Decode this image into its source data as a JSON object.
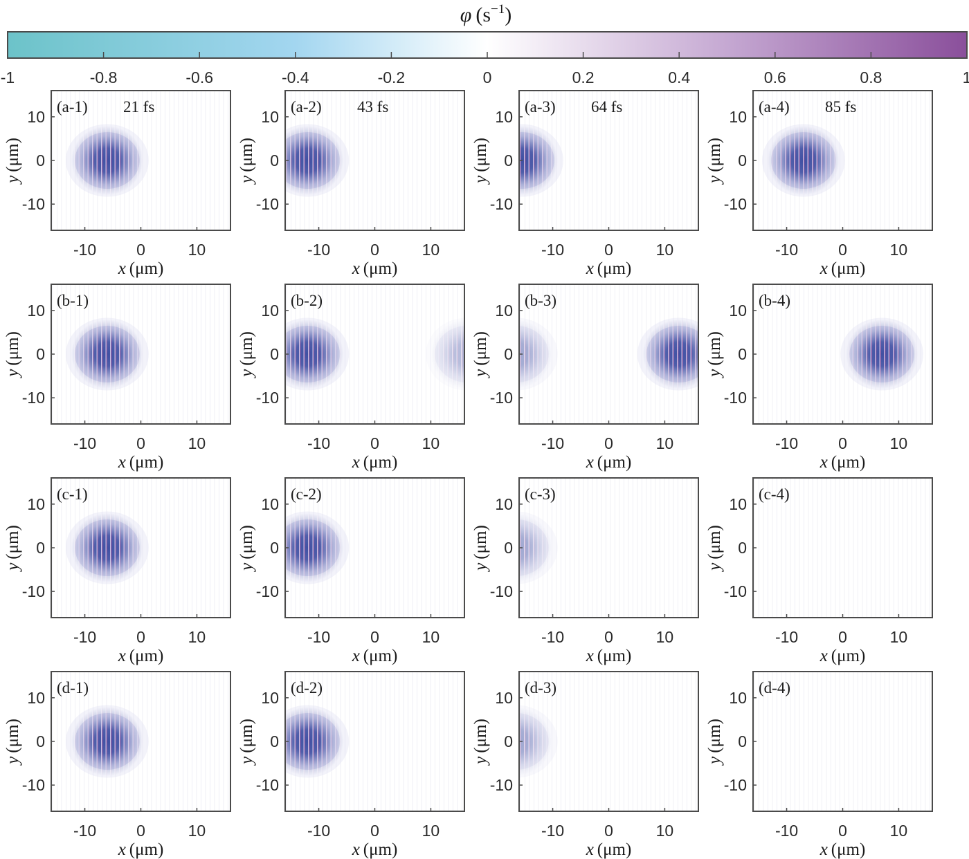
{
  "colorbar": {
    "label_symbol": "φ",
    "label_unit": "(s",
    "label_exp": "−1",
    "label_close": ")",
    "ticks": [
      "-1",
      "-0.8",
      "-0.6",
      "-0.4",
      "-0.2",
      "0",
      "0.2",
      "0.4",
      "0.6",
      "0.8",
      "1"
    ],
    "tick_values": [
      -1,
      -0.8,
      -0.6,
      -0.4,
      -0.2,
      0,
      0.2,
      0.4,
      0.6,
      0.8,
      1
    ],
    "range": [
      -1,
      1
    ],
    "colors": {
      "neg": "#6cc2c9",
      "mid_neg": "#9fd3ee",
      "zero": "#ffffff",
      "pos": "#8a4f9b"
    }
  },
  "chart_data": {
    "type": "heatmap",
    "xlabel_var": "x",
    "xlabel_unit": "(μm)",
    "ylabel_var": "y",
    "ylabel_unit": "(μm)",
    "xlim": [
      -16,
      16
    ],
    "ylim": [
      -16,
      16
    ],
    "x_ticks": [
      -10,
      0,
      10
    ],
    "y_ticks": [
      10,
      0,
      -10
    ],
    "x_tick_labels": [
      "-10",
      "0",
      "10"
    ],
    "y_tick_labels": [
      "10",
      "0",
      "-10"
    ],
    "rows": [
      {
        "panels": [
          {
            "label": "(a-1)",
            "time": "21 fs",
            "pulses": [
              {
                "x": -6,
                "y": 0,
                "amp": 1.0
              }
            ]
          },
          {
            "label": "(a-2)",
            "time": "43 fs",
            "pulses": [
              {
                "x": -12,
                "y": 0,
                "amp": 1.0
              }
            ]
          },
          {
            "label": "(a-3)",
            "time": "64 fs",
            "pulses": [
              {
                "x": -15.5,
                "y": 0,
                "amp": 1.0
              }
            ]
          },
          {
            "label": "(a-4)",
            "time": "85 fs",
            "pulses": [
              {
                "x": -7,
                "y": 0,
                "amp": 1.0
              }
            ]
          }
        ]
      },
      {
        "panels": [
          {
            "label": "(b-1)",
            "pulses": [
              {
                "x": -6,
                "y": 0,
                "amp": 1.0
              }
            ]
          },
          {
            "label": "(b-2)",
            "pulses": [
              {
                "x": -12,
                "y": 0,
                "amp": 1.0
              },
              {
                "x": 16.5,
                "y": 0,
                "amp": 0.4
              }
            ]
          },
          {
            "label": "(b-3)",
            "pulses": [
              {
                "x": -16.5,
                "y": 0,
                "amp": 0.5
              },
              {
                "x": 12.5,
                "y": 0,
                "amp": 1.0
              }
            ]
          },
          {
            "label": "(b-4)",
            "pulses": [
              {
                "x": 7,
                "y": 0,
                "amp": 1.0
              }
            ]
          }
        ]
      },
      {
        "panels": [
          {
            "label": "(c-1)",
            "pulses": [
              {
                "x": -6,
                "y": 0,
                "amp": 1.0
              }
            ]
          },
          {
            "label": "(c-2)",
            "pulses": [
              {
                "x": -12,
                "y": 0,
                "amp": 1.0
              }
            ]
          },
          {
            "label": "(c-3)",
            "pulses": [
              {
                "x": -16.5,
                "y": 0,
                "amp": 0.5
              }
            ]
          },
          {
            "label": "(c-4)",
            "pulses": []
          }
        ]
      },
      {
        "panels": [
          {
            "label": "(d-1)",
            "pulses": [
              {
                "x": -6,
                "y": 0,
                "amp": 1.0
              }
            ]
          },
          {
            "label": "(d-2)",
            "pulses": [
              {
                "x": -12,
                "y": 0,
                "amp": 1.0
              }
            ]
          },
          {
            "label": "(d-3)",
            "pulses": [
              {
                "x": -16.5,
                "y": 0,
                "amp": 0.5
              }
            ]
          },
          {
            "label": "(d-4)",
            "pulses": []
          }
        ]
      }
    ]
  }
}
